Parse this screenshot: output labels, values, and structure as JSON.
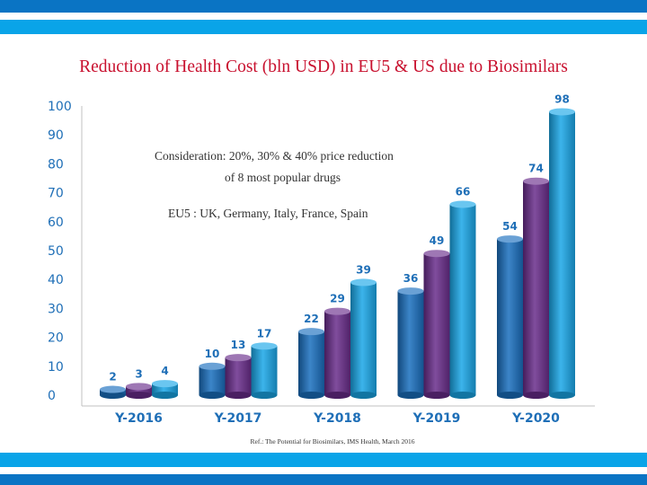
{
  "colors": {
    "band_dark": "#0a74c4",
    "band_light": "#09a4e8",
    "title": "#c8102e",
    "axis_text": "#1f6fb7"
  },
  "notes": {
    "line1": "Consideration:  20%, 30% & 40% price reduction",
    "line2": "of 8 most popular drugs",
    "line3": "EU5 : UK, Germany, Italy, France, Spain"
  },
  "reference": "Ref.: The Potential for Biosimilars, IMS Health, March 2016",
  "chart_data": {
    "type": "bar",
    "title": "Reduction of Health Cost  (bln USD) in EU5 & US due to Biosimilars",
    "xlabel": "",
    "ylabel": "",
    "ylim": [
      0,
      100
    ],
    "yticks": [
      0,
      10,
      20,
      30,
      40,
      50,
      60,
      70,
      80,
      90,
      100
    ],
    "categories": [
      "Y-2016",
      "Y-2017",
      "Y-2018",
      "Y-2019",
      "Y-2020"
    ],
    "series": [
      {
        "name": "20% price reduction",
        "color": "#1a6fbe",
        "values": [
          2,
          10,
          22,
          36,
          54
        ]
      },
      {
        "name": "30% price reduction",
        "color": "#6a2d8c",
        "values": [
          3,
          13,
          29,
          49,
          74
        ]
      },
      {
        "name": "40% price reduction",
        "color": "#1aa7e8",
        "values": [
          4,
          17,
          39,
          66,
          98
        ]
      }
    ],
    "legend": "none",
    "grid": false
  }
}
